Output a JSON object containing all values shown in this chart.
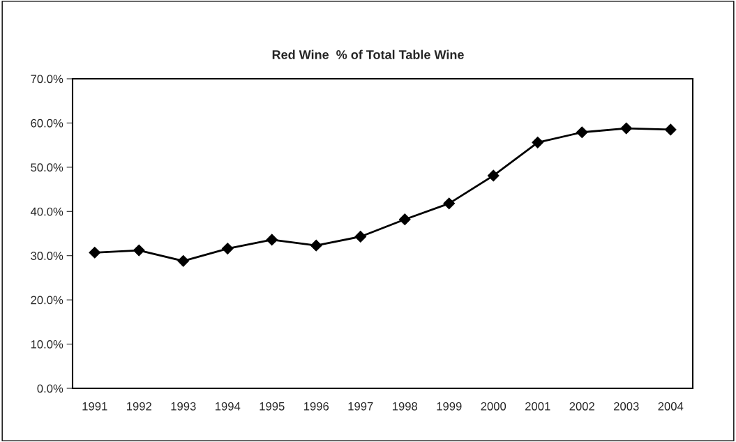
{
  "chart_data": {
    "type": "line",
    "title": "Red Wine  % of Total Table Wine",
    "categories": [
      "1991",
      "1992",
      "1993",
      "1994",
      "1995",
      "1996",
      "1997",
      "1998",
      "1999",
      "2000",
      "2001",
      "2002",
      "2003",
      "2004"
    ],
    "series": [
      {
        "color": "#000000",
        "values": [
          30.7,
          31.2,
          28.8,
          31.6,
          33.6,
          32.3,
          34.3,
          38.2,
          41.8,
          48.1,
          55.6,
          57.9,
          58.8,
          58.5
        ]
      }
    ],
    "ylim": [
      0,
      70
    ],
    "yticks": [
      {
        "value": 0,
        "label": "0.0%"
      },
      {
        "value": 10,
        "label": "10.0%"
      },
      {
        "value": 20,
        "label": "20.0%"
      },
      {
        "value": 30,
        "label": "30.0%"
      },
      {
        "value": 40,
        "label": "40.0%"
      },
      {
        "value": 50,
        "label": "50.0%"
      },
      {
        "value": 60,
        "label": "60.0%"
      },
      {
        "value": 70,
        "label": "70.0%"
      }
    ],
    "grid": false,
    "legend": false,
    "marker": "diamond",
    "line_style": "solid"
  }
}
